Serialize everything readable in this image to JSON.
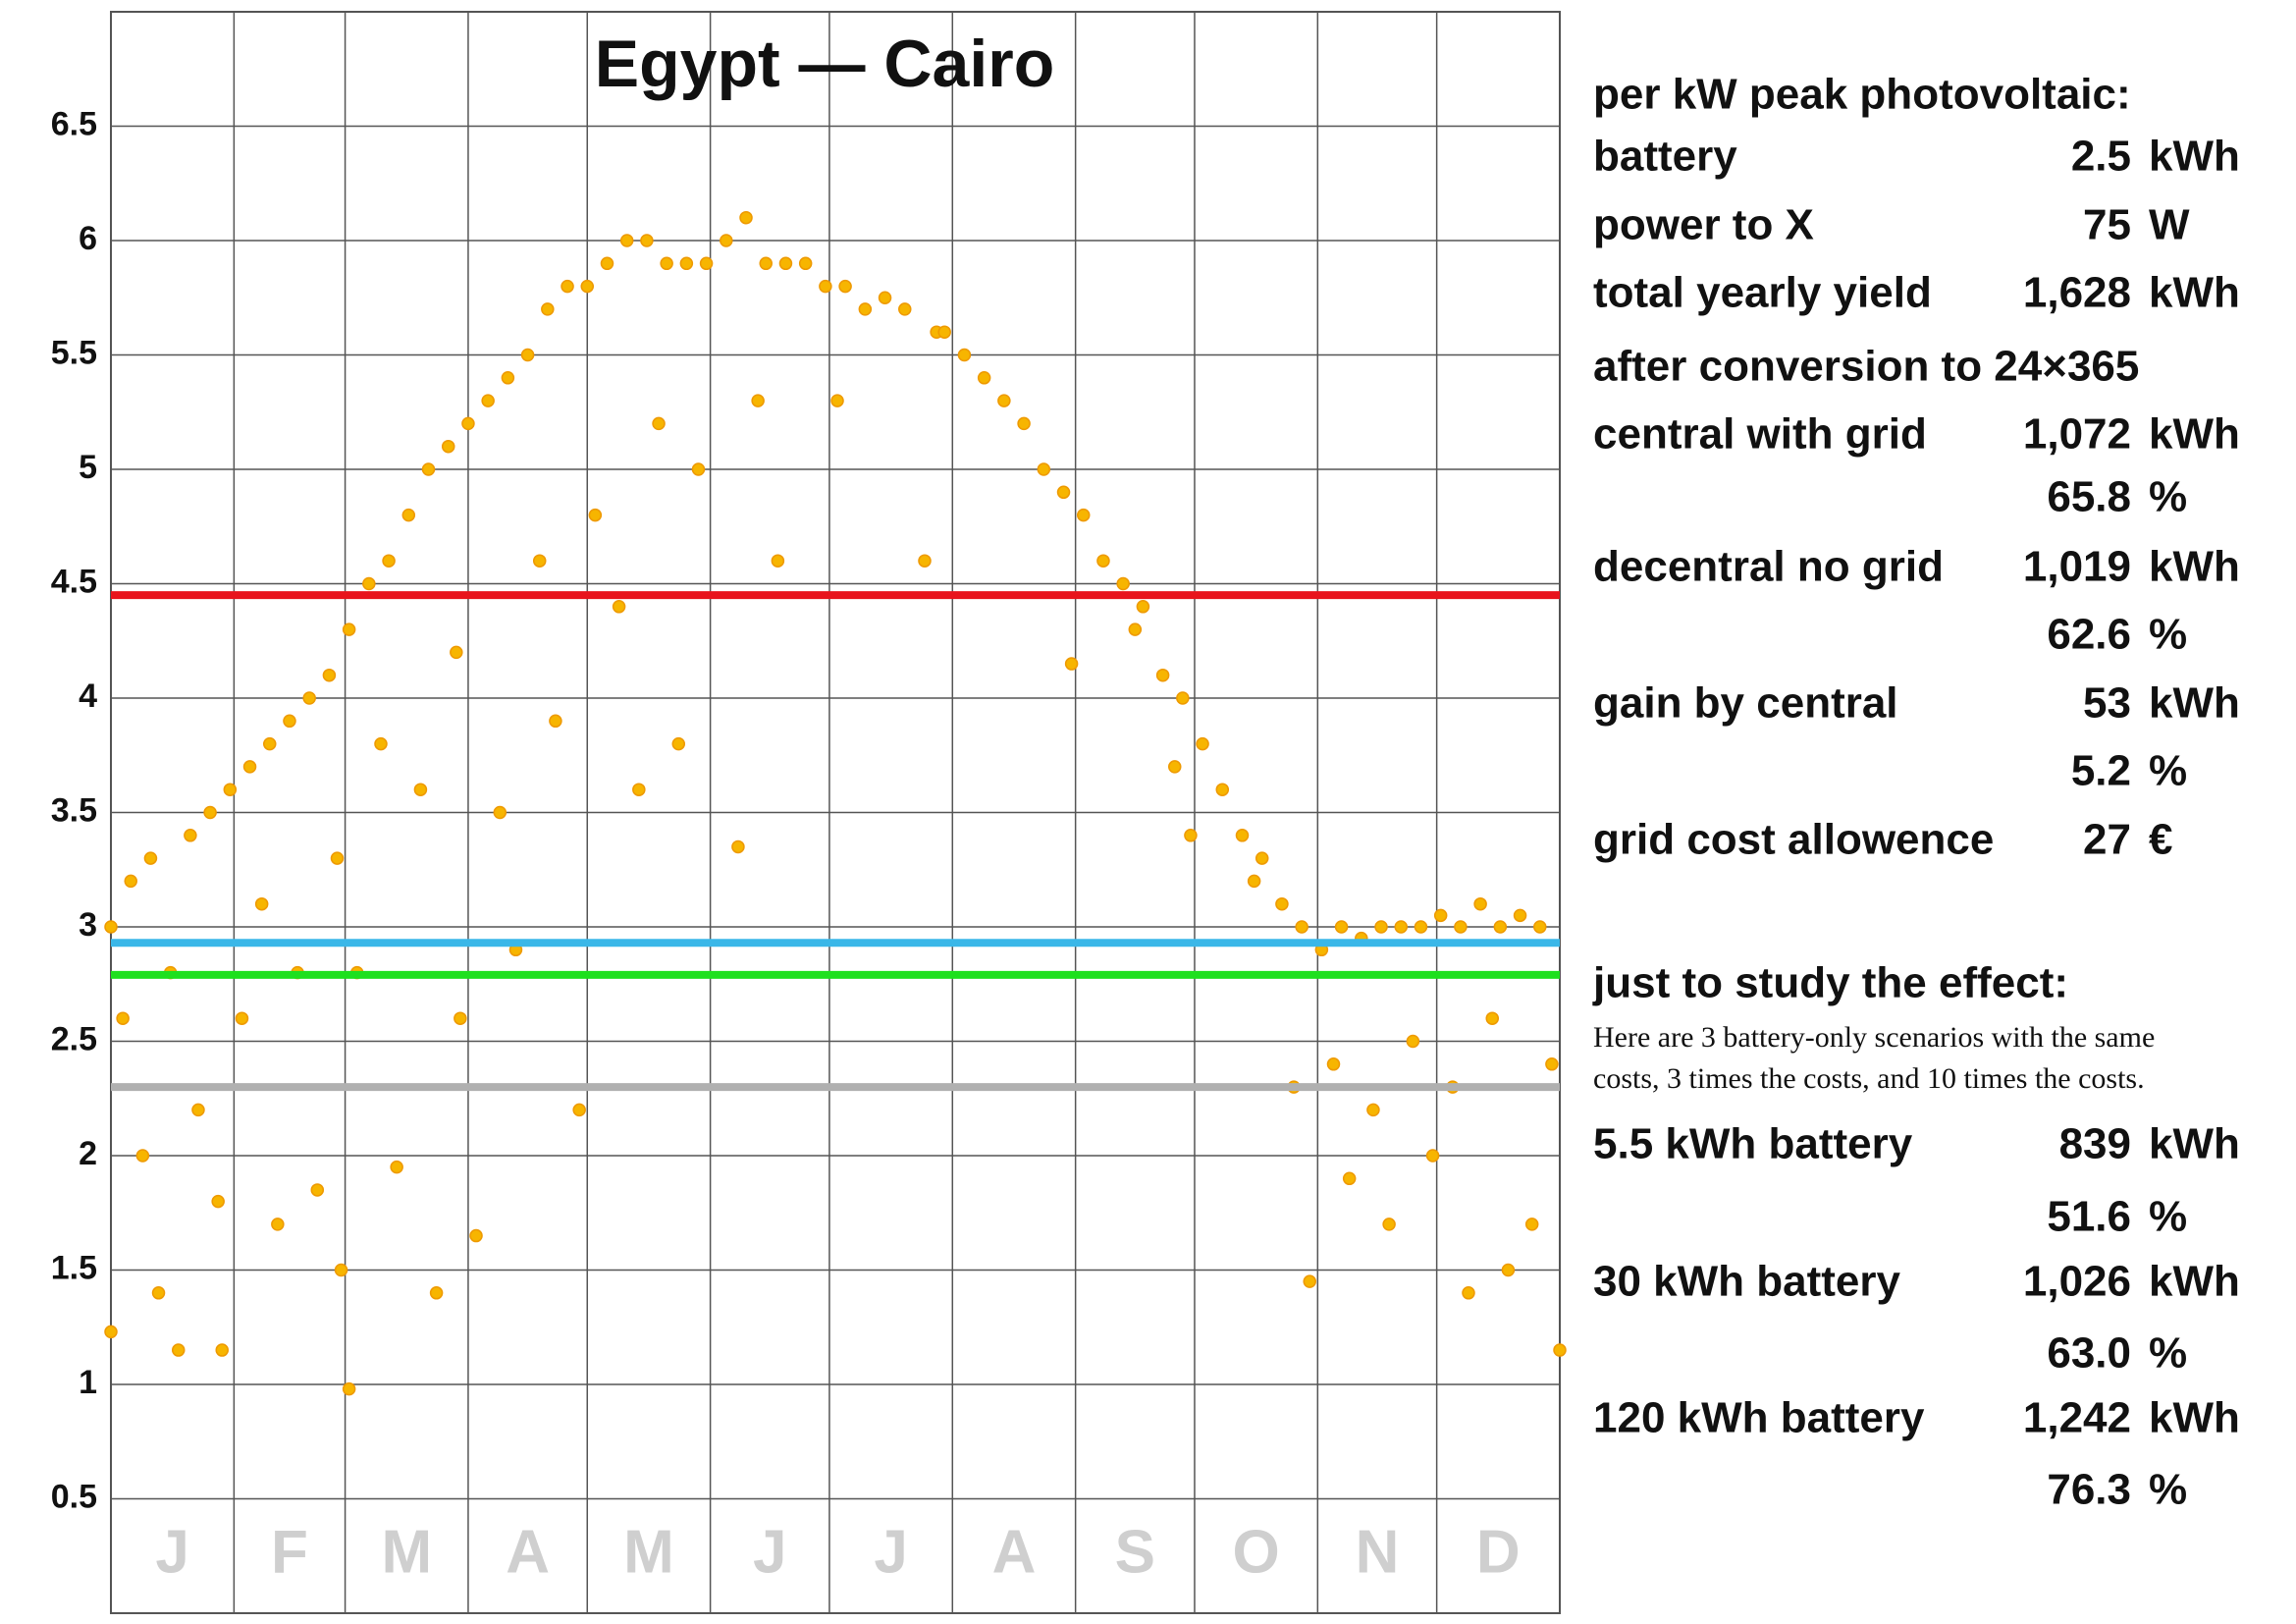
{
  "chart_data": {
    "type": "scatter",
    "title": "Egypt — Cairo",
    "categories": [
      "J",
      "F",
      "M",
      "A",
      "M",
      "J",
      "J",
      "A",
      "S",
      "O",
      "N",
      "D"
    ],
    "xlim": [
      0,
      365
    ],
    "xticks": [
      0,
      31,
      59,
      90,
      120,
      151,
      181,
      212,
      243,
      273,
      304,
      334,
      365
    ],
    "ylim": [
      0,
      7
    ],
    "yticks": [
      0.5,
      1,
      1.5,
      2,
      2.5,
      3,
      3.5,
      4,
      4.5,
      5,
      5.5,
      6,
      6.5,
      7
    ],
    "grid": true,
    "color": "#f7b500",
    "edge_color": "#ee9900",
    "hlines": [
      {
        "value": 4.45,
        "color": "#e8141c"
      },
      {
        "value": 2.93,
        "color": "#3ab7e8"
      },
      {
        "value": 2.79,
        "color": "#1ee01e"
      },
      {
        "value": 2.3,
        "color": "#b0b0b0"
      }
    ],
    "x": [
      0,
      0,
      3,
      5,
      8,
      10,
      12,
      15,
      17,
      20,
      22,
      25,
      27,
      28,
      30,
      33,
      35,
      38,
      40,
      42,
      45,
      47,
      50,
      52,
      55,
      57,
      58,
      60,
      62,
      60,
      65,
      68,
      70,
      72,
      75,
      78,
      80,
      82,
      85,
      87,
      88,
      90,
      92,
      95,
      98,
      100,
      102,
      105,
      108,
      110,
      112,
      115,
      118,
      120,
      122,
      125,
      128,
      130,
      133,
      135,
      138,
      140,
      143,
      145,
      148,
      150,
      155,
      158,
      160,
      163,
      165,
      168,
      170,
      175,
      180,
      183,
      185,
      190,
      195,
      200,
      205,
      208,
      210,
      215,
      220,
      225,
      230,
      235,
      240,
      242,
      245,
      250,
      255,
      258,
      260,
      265,
      268,
      270,
      272,
      275,
      280,
      285,
      288,
      290,
      295,
      298,
      300,
      302,
      305,
      308,
      310,
      312,
      315,
      318,
      320,
      322,
      325,
      328,
      330,
      333,
      335,
      338,
      340,
      342,
      345,
      348,
      350,
      352,
      355,
      358,
      360,
      363,
      365
    ],
    "y": [
      3.0,
      1.23,
      2.6,
      3.2,
      2.0,
      3.3,
      1.4,
      2.8,
      1.15,
      3.4,
      2.2,
      3.5,
      1.8,
      1.15,
      3.6,
      2.6,
      3.7,
      3.1,
      3.8,
      1.7,
      3.9,
      2.8,
      4.0,
      1.85,
      4.1,
      3.3,
      1.5,
      4.3,
      2.8,
      0.98,
      4.5,
      3.8,
      4.6,
      1.95,
      4.8,
      3.6,
      5.0,
      1.4,
      5.1,
      4.2,
      2.6,
      5.2,
      1.65,
      5.3,
      3.5,
      5.4,
      2.9,
      5.5,
      4.6,
      5.7,
      3.9,
      5.8,
      2.2,
      5.8,
      4.8,
      5.9,
      4.4,
      6.0,
      3.6,
      6.0,
      5.2,
      5.9,
      3.8,
      5.9,
      5.0,
      5.9,
      6.0,
      3.35,
      6.1,
      5.3,
      5.9,
      4.6,
      5.9,
      5.9,
      5.8,
      5.3,
      5.8,
      5.7,
      5.75,
      5.7,
      4.6,
      5.6,
      5.6,
      5.5,
      5.4,
      5.3,
      5.2,
      5.0,
      4.9,
      4.15,
      4.8,
      4.6,
      4.5,
      4.3,
      4.4,
      4.1,
      3.7,
      4.0,
      3.4,
      3.8,
      3.6,
      3.4,
      3.2,
      3.3,
      3.1,
      2.3,
      3.0,
      1.45,
      2.9,
      2.4,
      3.0,
      1.9,
      2.95,
      2.2,
      3.0,
      1.7,
      3.0,
      2.5,
      3.0,
      2.0,
      3.05,
      2.3,
      3.0,
      1.4,
      3.1,
      2.6,
      3.0,
      1.5,
      3.05,
      1.7,
      3.0,
      2.4,
      1.15
    ]
  },
  "panel": {
    "default_color": "#111111",
    "rows": [
      {
        "label": "per kW peak photovoltaic:"
      },
      {
        "label": "battery",
        "value": "2.5",
        "unit": "kWh"
      },
      {
        "label": "power to X",
        "value": "75",
        "unit": "W"
      },
      {
        "label": "total yearly yield",
        "value": "1,628",
        "unit": "kWh",
        "label_color": "#e8141c",
        "unit_color": "#e8141c"
      },
      {
        "label": "after conversion to 24×365"
      },
      {
        "label": "central with grid",
        "value": "1,072",
        "unit": "kWh",
        "label_color": "#3ab7e8",
        "unit_color": "#3ab7e8"
      },
      {
        "value": "65.8",
        "unit": "%",
        "unit_color": "#3ab7e8"
      },
      {
        "label": "decentral no grid",
        "value": "1,019",
        "unit": "kWh",
        "label_color": "#1ee01e",
        "unit_color": "#1ee01e"
      },
      {
        "value": "62.6",
        "unit": "%",
        "unit_color": "#1ee01e"
      },
      {
        "label": "gain by central",
        "value": "53",
        "unit": "kWh"
      },
      {
        "value": "5.2",
        "unit": "%"
      },
      {
        "label": "grid cost allowence",
        "value": "27",
        "unit": "€"
      },
      {
        "label": "just to study the effect:"
      },
      {
        "note": [
          "Here are 3 battery-only scenarios with the same",
          "costs, 3 times the costs, and 10 times the costs."
        ]
      },
      {
        "label": "5.5 kWh battery",
        "value": "839",
        "unit": "kWh",
        "label_color": "#b0b0b0",
        "unit_color": "#b0b0b0"
      },
      {
        "value": "51.6",
        "unit": "%",
        "unit_color": "#b0b0b0"
      },
      {
        "label": "30 kWh battery",
        "value": "1,026",
        "unit": "kWh"
      },
      {
        "value": "63.0",
        "unit": "%"
      },
      {
        "label": "120 kWh battery",
        "value": "1,242",
        "unit": "kWh"
      },
      {
        "value": "76.3",
        "unit": "%"
      }
    ]
  }
}
